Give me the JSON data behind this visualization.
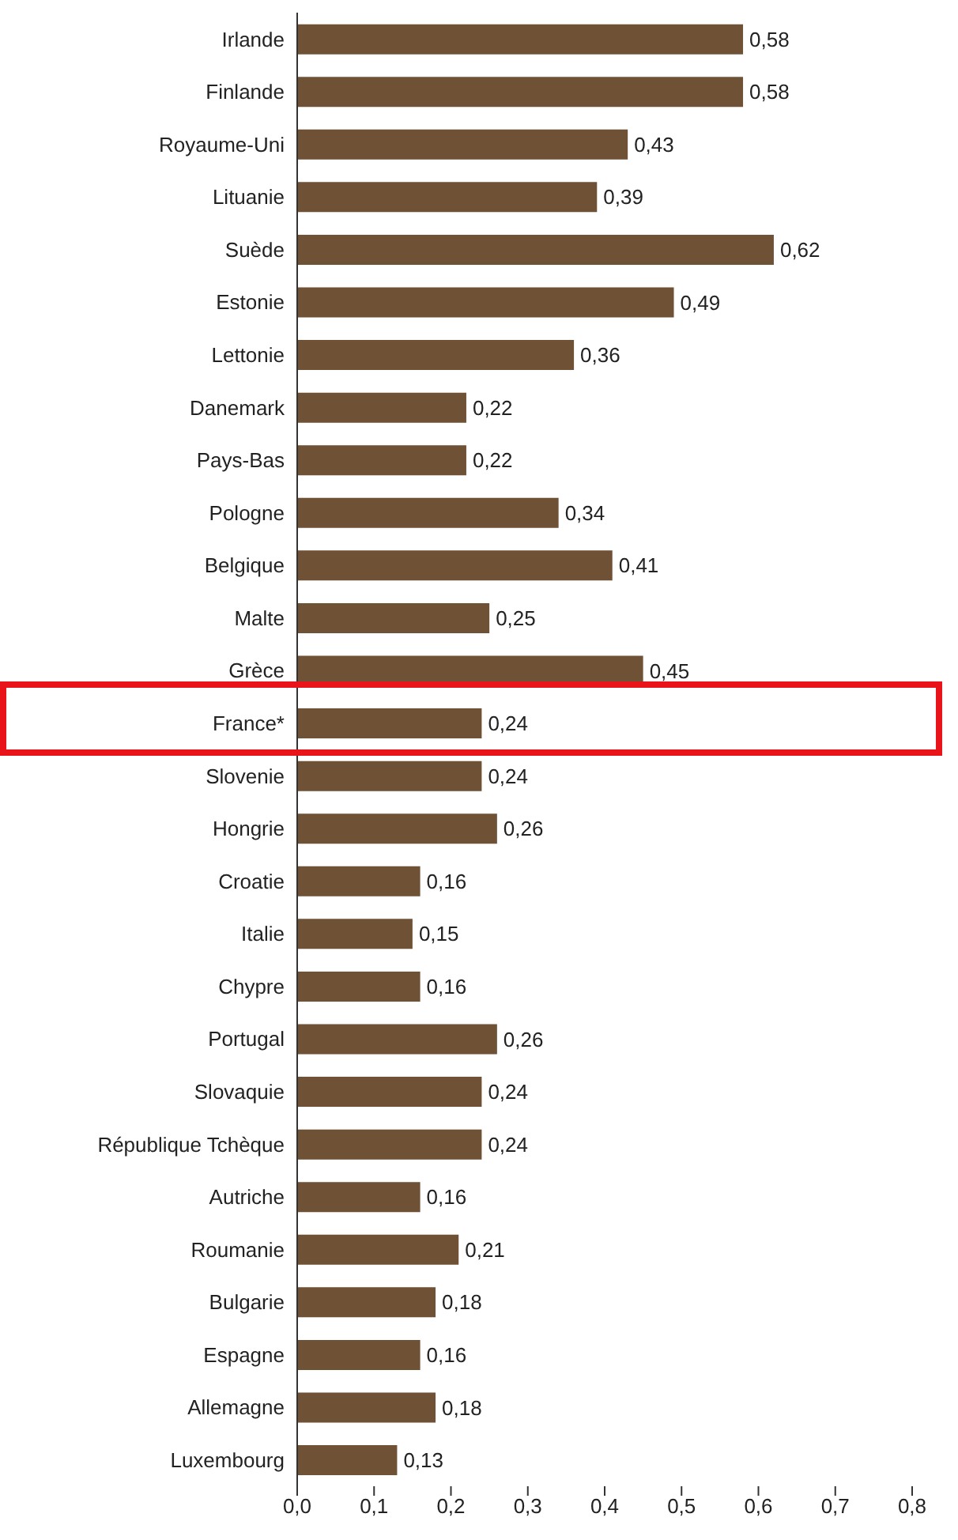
{
  "chart_data": {
    "type": "bar",
    "orientation": "horizontal",
    "categories": [
      "Irlande",
      "Finlande",
      "Royaume-Uni",
      "Lituanie",
      "Suède",
      "Estonie",
      "Lettonie",
      "Danemark",
      "Pays-Bas",
      "Pologne",
      "Belgique",
      "Malte",
      "Grèce",
      "France*",
      "Slovenie",
      "Hongrie",
      "Croatie",
      "Italie",
      "Chypre",
      "Portugal",
      "Slovaquie",
      "République Tchèque",
      "Autriche",
      "Roumanie",
      "Bulgarie",
      "Espagne",
      "Allemagne",
      "Luxembourg"
    ],
    "values": [
      0.58,
      0.58,
      0.43,
      0.39,
      0.62,
      0.49,
      0.36,
      0.22,
      0.22,
      0.34,
      0.41,
      0.25,
      0.45,
      0.24,
      0.24,
      0.26,
      0.16,
      0.15,
      0.16,
      0.26,
      0.24,
      0.24,
      0.16,
      0.21,
      0.18,
      0.16,
      0.18,
      0.13
    ],
    "value_labels": [
      "0,58",
      "0,58",
      "0,43",
      "0,39",
      "0,62",
      "0,49",
      "0,36",
      "0,22",
      "0,22",
      "0,34",
      "0,41",
      "0,25",
      "0,45",
      "0,24",
      "0,24",
      "0,26",
      "0,16",
      "0,15",
      "0,16",
      "0,26",
      "0,24",
      "0,24",
      "0,16",
      "0,21",
      "0,18",
      "0,16",
      "0,18",
      "0,13"
    ],
    "color": "#6f5136",
    "xlim": [
      0,
      0.8
    ],
    "xticks": [
      {
        "value": 0,
        "label": "0,0"
      },
      {
        "value": 0.1,
        "label": "0,1"
      },
      {
        "value": 0.2,
        "label": "0,2"
      },
      {
        "value": 0.3,
        "label": "0,3"
      },
      {
        "value": 0.4,
        "label": "0,4"
      },
      {
        "value": 0.5,
        "label": "0,5"
      },
      {
        "value": 0.6,
        "label": "0,6"
      },
      {
        "value": 0.7,
        "label": "0,7"
      },
      {
        "value": 0.8,
        "label": "0,8"
      }
    ],
    "grid": false,
    "legend": false
  }
}
